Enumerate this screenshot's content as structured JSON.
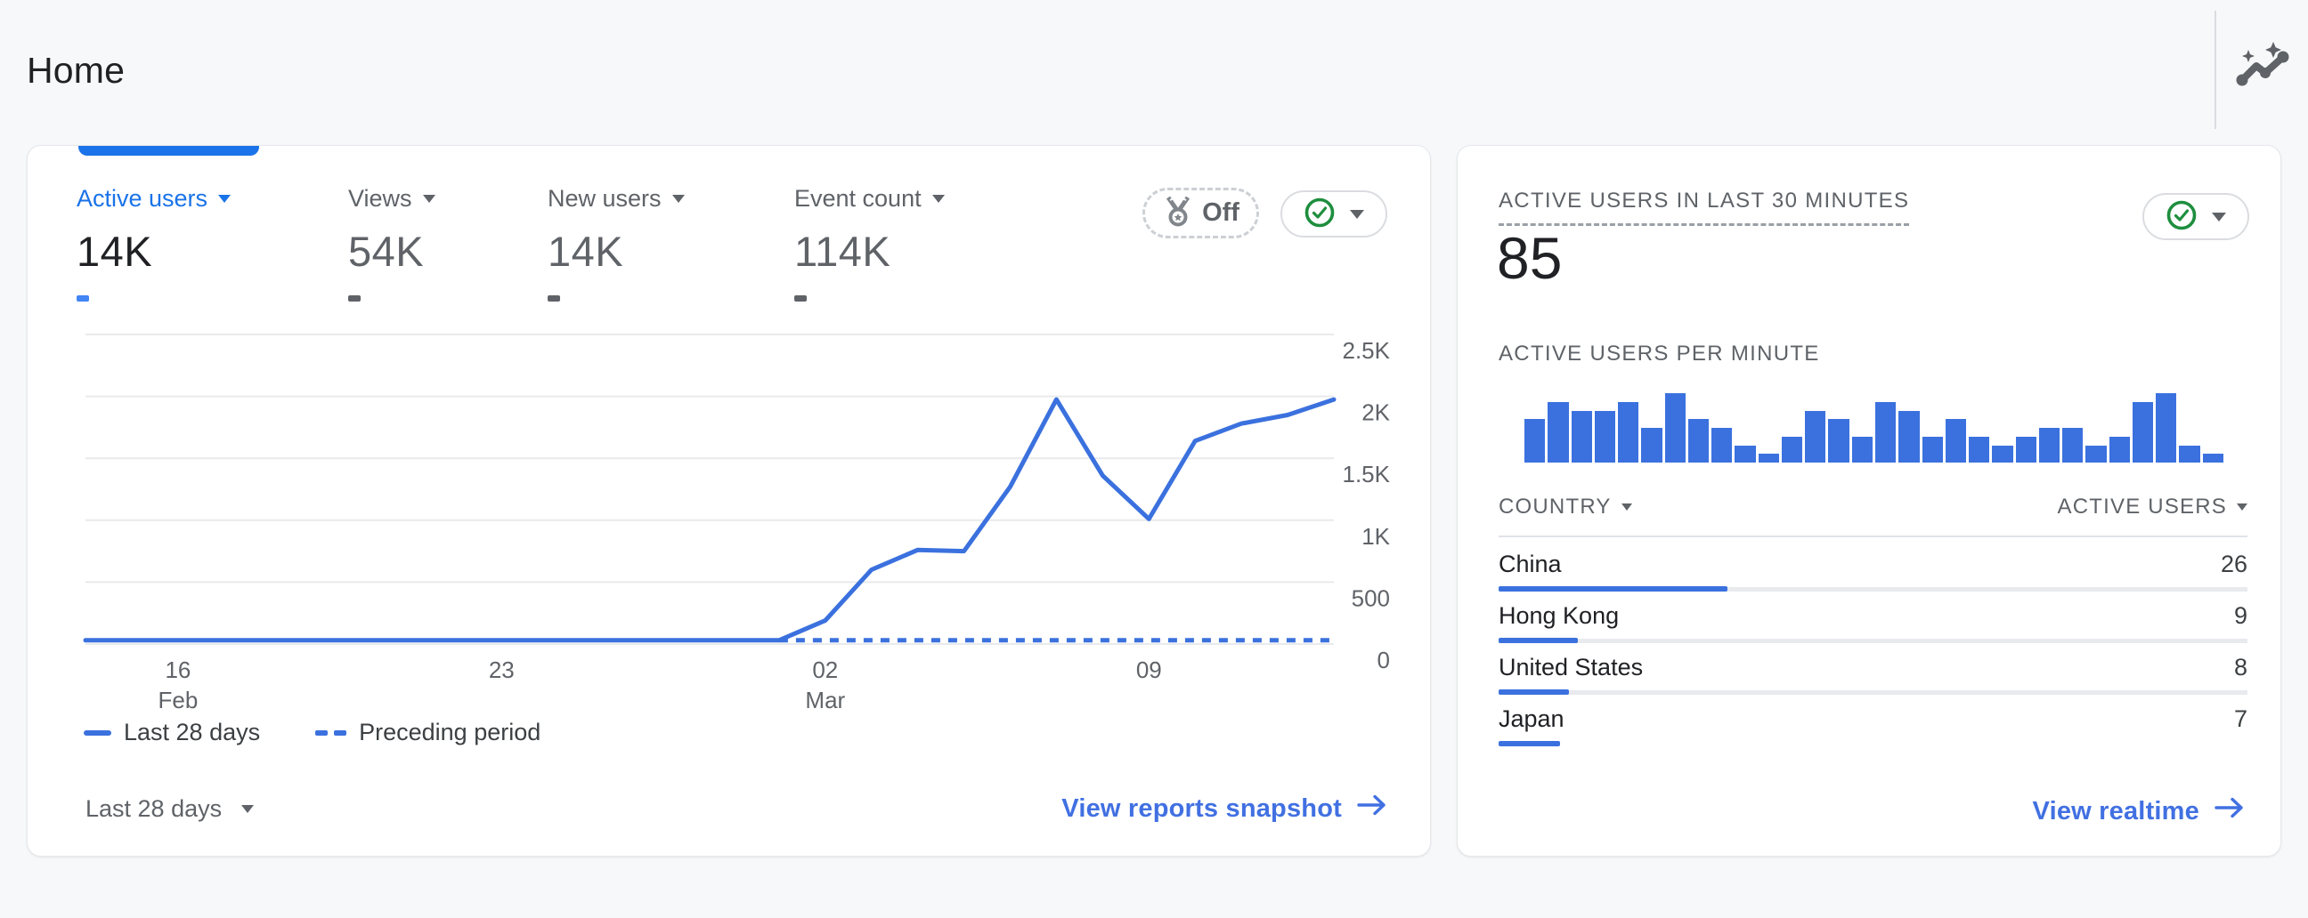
{
  "colors": {
    "accent_blue": "#1a73e8",
    "chart_blue": "#3b71de",
    "link_blue": "#4170e2",
    "green": "#1e8e3e",
    "text_dark": "#202124",
    "text_gray": "#5f6368",
    "grid": "#e9eaec"
  },
  "header": {
    "title": "Home",
    "insights_icon": "insights-sparkline-icon"
  },
  "left_card": {
    "metrics": [
      {
        "label": "Active users",
        "value": "14K",
        "delta": "-",
        "selected": true
      },
      {
        "label": "Views",
        "value": "54K",
        "delta": "-",
        "selected": false
      },
      {
        "label": "New users",
        "value": "14K",
        "delta": "-",
        "selected": false
      },
      {
        "label": "Event count",
        "value": "114K",
        "delta": "-",
        "selected": false
      }
    ],
    "comparison_badge": {
      "label": "Off",
      "icon": "medal-icon"
    },
    "status_button": {
      "icon": "check-circle-icon"
    },
    "legend": [
      {
        "label": "Last 28 days",
        "style": "solid"
      },
      {
        "label": "Preceding period",
        "style": "dashed"
      }
    ],
    "footer": {
      "date_range": "Last 28 days",
      "link": "View reports snapshot"
    }
  },
  "right_card": {
    "title": "ACTIVE USERS IN LAST 30 MINUTES",
    "value": "85",
    "subtitle": "ACTIVE USERS PER MINUTE",
    "status_button": {
      "icon": "check-circle-icon"
    },
    "link": "View realtime"
  },
  "chart_data": [
    {
      "id": "users-trend",
      "type": "line",
      "x": [
        "Feb 14",
        "Feb 15",
        "Feb 16",
        "Feb 17",
        "Feb 18",
        "Feb 19",
        "Feb 20",
        "Feb 21",
        "Feb 22",
        "Feb 23",
        "Feb 24",
        "Feb 25",
        "Feb 26",
        "Feb 27",
        "Feb 28",
        "Mar 01",
        "Mar 02",
        "Mar 03",
        "Mar 04",
        "Mar 05",
        "Mar 06",
        "Mar 07",
        "Mar 08",
        "Mar 09",
        "Mar 10",
        "Mar 11",
        "Mar 12",
        "Mar 13"
      ],
      "series": [
        {
          "name": "Last 28 days",
          "style": "solid",
          "values": [
            30,
            30,
            30,
            30,
            30,
            30,
            30,
            30,
            30,
            30,
            30,
            30,
            30,
            30,
            30,
            30,
            190,
            600,
            760,
            750,
            1270,
            1975,
            1360,
            1010,
            1640,
            1780,
            1850,
            1975
          ]
        },
        {
          "name": "Preceding period",
          "style": "dashed",
          "constant_value": 30,
          "visible_from_index": 15
        }
      ],
      "ylim": [
        0,
        2500
      ],
      "y_ticks": [
        {
          "v": 2500,
          "label": "2.5K"
        },
        {
          "v": 2000,
          "label": "2K"
        },
        {
          "v": 1500,
          "label": "1.5K"
        },
        {
          "v": 1000,
          "label": "1K"
        },
        {
          "v": 500,
          "label": "500"
        },
        {
          "v": 0,
          "label": "0"
        }
      ],
      "x_ticks": [
        {
          "index": 2,
          "label": "16",
          "sub": "Feb"
        },
        {
          "index": 9,
          "label": "23",
          "sub": ""
        },
        {
          "index": 16,
          "label": "02",
          "sub": "Mar"
        },
        {
          "index": 23,
          "label": "09",
          "sub": ""
        }
      ],
      "grid": "on",
      "legend_position": "bottom"
    },
    {
      "id": "active-users-per-minute",
      "type": "bar",
      "title": "ACTIVE USERS PER MINUTE",
      "values": [
        5,
        7,
        6,
        6,
        7,
        4,
        8,
        5,
        4,
        2,
        1,
        3,
        6,
        5,
        3,
        7,
        6,
        3,
        5,
        3,
        2,
        3,
        4,
        4,
        2,
        3,
        7,
        8,
        2,
        1
      ],
      "ylim": [
        0,
        8
      ]
    },
    {
      "id": "countries-realtime",
      "type": "table",
      "headers": [
        "COUNTRY",
        "ACTIVE USERS"
      ],
      "rows": [
        {
          "name": "China",
          "value": 26
        },
        {
          "name": "Hong Kong",
          "value": 9
        },
        {
          "name": "United States",
          "value": 8
        },
        {
          "name": "Japan",
          "value": 7
        }
      ],
      "bar_total": 85
    }
  ]
}
